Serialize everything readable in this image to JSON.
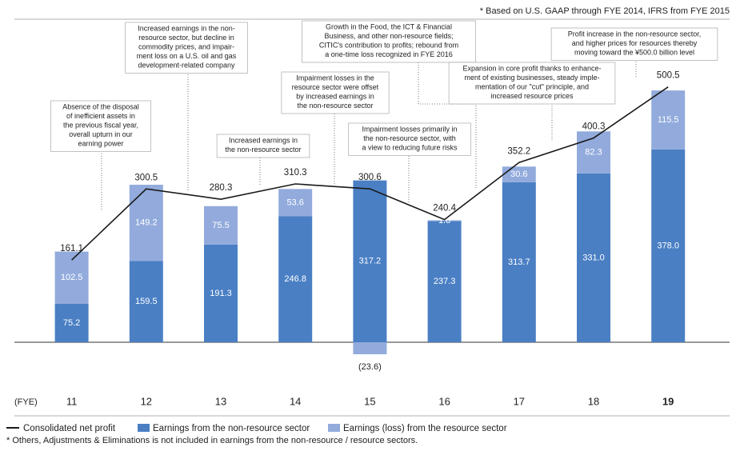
{
  "chart_data": {
    "type": "bar",
    "note_top": "* Based on U.S. GAAP through FYE 2014, IFRS from FYE 2015",
    "x_prefix": "(FYE)",
    "categories": [
      "11",
      "12",
      "13",
      "14",
      "15",
      "16",
      "17",
      "18",
      "19"
    ],
    "ylim": [
      -40,
      560
    ],
    "series": [
      {
        "name": "Earnings from the non-resource sector",
        "color": "#4a7fc4",
        "values": [
          75.2,
          159.5,
          191.3,
          246.8,
          317.2,
          237.3,
          313.7,
          331.0,
          378.0
        ],
        "value_labels": [
          "75.2",
          "159.5",
          "191.3",
          "246.8",
          "317.2",
          "237.3",
          "313.7",
          "331.0",
          "378.0"
        ]
      },
      {
        "name": "Earnings (loss) from the resource sector",
        "color": "#92abdc",
        "values": [
          102.5,
          149.2,
          75.5,
          53.6,
          -23.6,
          1.8,
          30.6,
          82.3,
          115.5
        ],
        "value_labels": [
          "102.5",
          "149.2",
          "75.5",
          "53.6",
          "(23.6)",
          "1.8",
          "30.6",
          "82.3",
          "115.5"
        ]
      },
      {
        "name": "Consolidated net profit",
        "color": "#1a1a1a",
        "type": "line",
        "values": [
          161.1,
          300.5,
          280.3,
          310.3,
          300.6,
          240.4,
          352.2,
          400.3,
          500.5
        ]
      }
    ],
    "annotations": [
      [
        "Absence of the disposal",
        "of inefficient assets in",
        "the previous fiscal year,",
        "overall upturn in our",
        "earning power"
      ],
      [
        "Increased earnings in the non-",
        "resource sector, but decline in",
        "commodity prices, and impair-",
        "ment loss on a U.S. oil and gas",
        "development-related company"
      ],
      [
        "Increased earnings in",
        "the non-resource sector"
      ],
      [
        "Impairment losses in the",
        "resource sector were offset",
        "by increased earnings in",
        "the non-resource sector"
      ],
      [
        "Growth in the Food, the ICT & Financial",
        "Business, and other non-resource fields;",
        "CITIC's contribution to profits; rebound from",
        "a one-time loss recognized in FYE 2016"
      ],
      [
        "Impairment losses primarily in",
        "the non-resource sector, with",
        "a view to reducing future risks"
      ],
      [
        "Expansion in core profit thanks to enhance-",
        "ment of existing businesses, steady imple-",
        "mentation of our \"cut\" principle, and",
        "increased resource prices"
      ],
      [
        "Profit increase in the non-resource sector,",
        "and higher prices for resources thereby",
        "moving toward the ¥500.0 billion level"
      ]
    ],
    "footnote": "* Others, Adjustments & Eliminations is not included in earnings from the non-resource / resource sectors."
  }
}
